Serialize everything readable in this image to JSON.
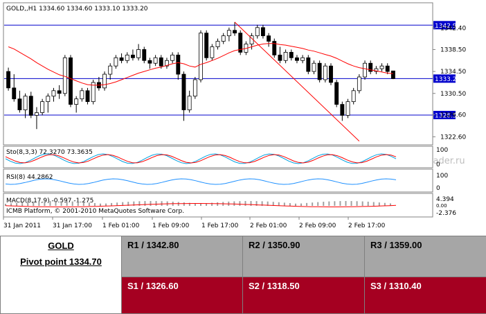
{
  "chart_data": {
    "type": "candlestick",
    "title": "GOLD,,H1  1334.60 1334.60 1333.10 1333.20",
    "symbol": "GOLD,",
    "timeframe": "H1",
    "ohlc_header": "1334.60 1334.60 1333.10 1333.20",
    "ylim": [
      1321.5,
      1345.0
    ],
    "y_ticks": [
      "1342.40",
      "1338.50",
      "1334.50",
      "1330.50",
      "1326.60",
      "1322.60"
    ],
    "x_tick_labels": [
      "31 Jan 2011",
      "31 Jan 17:00",
      "1 Feb 01:00",
      "1 Feb 09:00",
      "1 Feb 17:00",
      "2 Feb 01:00",
      "2 Feb 09:00",
      "2 Feb 17:00"
    ],
    "price_labels": [
      "1342.94",
      "1333.20",
      "1326.56"
    ],
    "horizontal_lines": [
      1342.94,
      1333.2,
      1326.56
    ],
    "candles": [
      [
        1334.5,
        1335.2,
        1331.0,
        1331.5
      ],
      [
        1331.5,
        1334.0,
        1329.0,
        1329.5
      ],
      [
        1329.5,
        1331.0,
        1327.0,
        1327.5
      ],
      [
        1327.5,
        1330.5,
        1326.0,
        1330.0
      ],
      [
        1330.0,
        1330.8,
        1326.0,
        1326.5
      ],
      [
        1326.5,
        1328.0,
        1324.0,
        1327.0
      ],
      [
        1327.0,
        1329.5,
        1326.5,
        1329.0
      ],
      [
        1329.0,
        1330.5,
        1327.0,
        1330.0
      ],
      [
        1330.0,
        1331.5,
        1329.0,
        1331.0
      ],
      [
        1331.0,
        1332.0,
        1329.5,
        1330.5
      ],
      [
        1330.5,
        1337.5,
        1330.0,
        1337.0
      ],
      [
        1337.0,
        1337.5,
        1328.0,
        1328.5
      ],
      [
        1328.5,
        1330.0,
        1327.0,
        1329.5
      ],
      [
        1329.5,
        1331.5,
        1329.0,
        1331.0
      ],
      [
        1331.0,
        1331.5,
        1328.5,
        1329.0
      ],
      [
        1329.0,
        1333.0,
        1328.5,
        1332.5
      ],
      [
        1332.5,
        1333.5,
        1331.0,
        1331.5
      ],
      [
        1331.5,
        1334.5,
        1331.0,
        1334.0
      ],
      [
        1334.0,
        1336.0,
        1333.0,
        1335.5
      ],
      [
        1335.5,
        1337.5,
        1335.0,
        1337.0
      ],
      [
        1337.0,
        1337.8,
        1336.0,
        1336.5
      ],
      [
        1336.5,
        1338.0,
        1336.0,
        1337.5
      ],
      [
        1337.5,
        1338.5,
        1336.5,
        1337.0
      ],
      [
        1337.0,
        1339.5,
        1336.5,
        1338.5
      ],
      [
        1338.5,
        1339.0,
        1336.0,
        1336.5
      ],
      [
        1336.5,
        1337.0,
        1335.0,
        1336.0
      ],
      [
        1336.0,
        1337.5,
        1335.5,
        1337.0
      ],
      [
        1337.0,
        1337.5,
        1335.0,
        1335.5
      ],
      [
        1335.5,
        1337.0,
        1335.0,
        1336.5
      ],
      [
        1336.5,
        1338.0,
        1336.0,
        1337.5
      ],
      [
        1337.5,
        1338.0,
        1333.0,
        1334.0
      ],
      [
        1334.0,
        1334.5,
        1325.5,
        1327.5
      ],
      [
        1327.5,
        1331.0,
        1327.0,
        1330.0
      ],
      [
        1330.0,
        1333.5,
        1329.5,
        1333.0
      ],
      [
        1333.0,
        1342.0,
        1332.5,
        1341.5
      ],
      [
        1341.5,
        1342.0,
        1336.5,
        1337.0
      ],
      [
        1337.0,
        1339.5,
        1336.5,
        1339.0
      ],
      [
        1339.0,
        1340.5,
        1338.5,
        1340.0
      ],
      [
        1340.0,
        1341.5,
        1339.5,
        1341.0
      ],
      [
        1341.0,
        1342.5,
        1340.0,
        1342.0
      ],
      [
        1342.0,
        1343.5,
        1341.0,
        1341.5
      ],
      [
        1341.5,
        1342.0,
        1337.5,
        1338.0
      ],
      [
        1338.0,
        1340.0,
        1337.5,
        1339.5
      ],
      [
        1339.5,
        1341.5,
        1338.5,
        1341.0
      ],
      [
        1341.0,
        1343.0,
        1340.5,
        1342.5
      ],
      [
        1342.5,
        1343.0,
        1340.5,
        1341.0
      ],
      [
        1341.0,
        1341.5,
        1339.0,
        1340.0
      ],
      [
        1340.0,
        1340.5,
        1337.0,
        1337.5
      ],
      [
        1337.5,
        1339.0,
        1336.0,
        1336.5
      ],
      [
        1336.5,
        1338.5,
        1336.0,
        1338.0
      ],
      [
        1338.0,
        1338.5,
        1336.5,
        1337.0
      ],
      [
        1337.0,
        1337.5,
        1336.0,
        1336.5
      ],
      [
        1336.5,
        1337.5,
        1336.0,
        1337.0
      ],
      [
        1337.0,
        1337.5,
        1334.0,
        1334.5
      ],
      [
        1334.5,
        1336.5,
        1334.0,
        1336.0
      ],
      [
        1336.0,
        1336.5,
        1332.5,
        1333.0
      ],
      [
        1333.0,
        1336.0,
        1332.5,
        1335.5
      ],
      [
        1335.5,
        1336.0,
        1332.0,
        1332.5
      ],
      [
        1332.5,
        1333.0,
        1328.0,
        1328.5
      ],
      [
        1328.5,
        1329.0,
        1325.5,
        1326.5
      ],
      [
        1326.5,
        1329.5,
        1326.0,
        1329.0
      ],
      [
        1329.0,
        1331.5,
        1328.5,
        1331.0
      ],
      [
        1331.0,
        1334.0,
        1330.5,
        1333.5
      ],
      [
        1333.5,
        1336.5,
        1333.0,
        1336.0
      ],
      [
        1336.0,
        1336.5,
        1334.0,
        1334.5
      ],
      [
        1334.5,
        1335.5,
        1334.0,
        1335.0
      ],
      [
        1335.0,
        1336.0,
        1334.5,
        1335.5
      ],
      [
        1335.5,
        1336.0,
        1334.0,
        1334.5
      ],
      [
        1334.6,
        1334.6,
        1333.1,
        1333.2
      ]
    ],
    "ma_values": [
      1339.0,
      1338.6,
      1338.0,
      1337.4,
      1336.8,
      1336.1,
      1335.5,
      1334.9,
      1334.4,
      1333.9,
      1333.6,
      1333.2,
      1332.8,
      1332.4,
      1332.1,
      1332.0,
      1332.0,
      1332.1,
      1332.3,
      1332.6,
      1333.0,
      1333.4,
      1333.8,
      1334.2,
      1334.5,
      1334.8,
      1335.1,
      1335.3,
      1335.6,
      1335.9,
      1336.1,
      1335.9,
      1335.5,
      1335.3,
      1335.8,
      1336.1,
      1336.5,
      1336.9,
      1337.4,
      1337.9,
      1338.3,
      1338.5,
      1338.7,
      1339.0,
      1339.3,
      1339.5,
      1339.6,
      1339.6,
      1339.4,
      1339.3,
      1339.1,
      1338.9,
      1338.7,
      1338.4,
      1338.2,
      1337.9,
      1337.6,
      1337.3,
      1336.9,
      1336.4,
      1335.9,
      1335.5,
      1335.2,
      1335.0,
      1334.8,
      1334.6,
      1334.4,
      1334.2,
      1334.1
    ],
    "trend_line": [
      [
        40,
        1343.5
      ],
      [
        62,
        1321.8
      ]
    ],
    "indicators": {
      "stochastic": {
        "label": "Sto(8,3,3) 72.3270 73.3635",
        "levels": [
          "100",
          "0"
        ]
      },
      "rsi": {
        "label": "RSI(8) 44.2862",
        "levels": [
          "100",
          "0"
        ]
      },
      "macd": {
        "label": "MACD(8,17,9) -0.597 -1.275",
        "levels": [
          "4.394",
          "0.00",
          "-2.376"
        ]
      }
    },
    "copyright": "ICMB Platform, © 2001-2010 MetaQuotes Software Corp.",
    "watermark": "Журнал ForTrader.ru",
    "colors": {
      "grid_border": "#808080",
      "level_line": "#0000cc",
      "ma_line": "#ff0000",
      "stoch_main": "#00a0e0",
      "stoch_signal": "#ff0000",
      "rsi_line": "#1e90ff",
      "macd_signal": "#ff0000"
    }
  },
  "pivot_table": {
    "symbol": "GOLD",
    "pivot_label": "Pivot point 1334.70",
    "resistance": [
      "R1 / 1342.80",
      "R2 / 1350.90",
      "R3 / 1359.00"
    ],
    "support": [
      "S1 / 1326.60",
      "S2 / 1318.50",
      "S3 / 1310.40"
    ],
    "colors": {
      "resistance_bg": "#a6a6a6",
      "support_bg": "#a50021"
    }
  }
}
